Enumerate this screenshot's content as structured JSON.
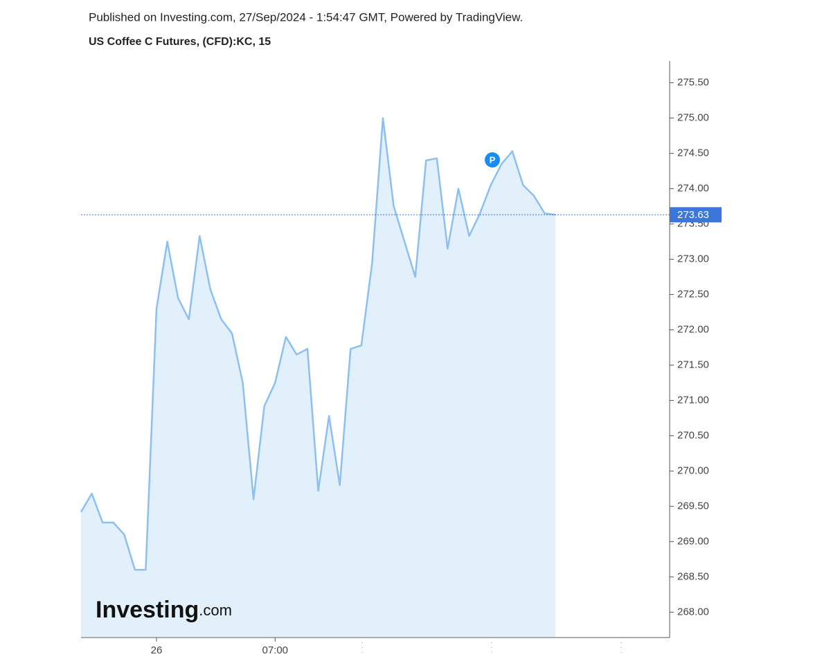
{
  "header": {
    "published": "Published on Investing.com, 27/Sep/2024 - 1:54:47 GMT, Powered by TradingView.",
    "logo_main": "Investing",
    "logo_suffix": ".com",
    "marker": "P"
  },
  "chart_data": {
    "type": "area",
    "title": "US Coffee C Futures, (CFD):KC, 15",
    "color": "#8dbfef",
    "fill": "#e1f0fa",
    "categories": [
      null,
      null,
      null,
      null,
      null,
      null,
      null,
      "26",
      null,
      null,
      null,
      null,
      null,
      null,
      null,
      null,
      null,
      null,
      "07:00",
      null,
      null,
      null,
      null,
      null,
      null,
      null,
      null,
      null,
      null,
      null,
      null,
      null,
      null,
      null,
      null,
      null,
      null,
      null,
      null,
      null,
      null,
      null,
      null,
      null,
      null
    ],
    "values": [
      269.42,
      269.68,
      269.27,
      269.27,
      269.1,
      268.6,
      268.6,
      272.3,
      273.25,
      272.45,
      272.15,
      273.33,
      272.57,
      272.15,
      271.95,
      271.25,
      269.6,
      270.92,
      271.25,
      271.9,
      271.65,
      271.73,
      269.72,
      270.78,
      269.8,
      271.73,
      271.78,
      272.95,
      275.0,
      273.75,
      273.25,
      272.75,
      274.4,
      274.43,
      273.15,
      274.0,
      273.33,
      273.65,
      274.05,
      274.35,
      274.53,
      274.05,
      273.9,
      273.65,
      273.63
    ],
    "ylim": [
      267.65,
      275.81
    ],
    "yticks": [
      {
        "value": 268,
        "label": "268.00"
      },
      {
        "value": 268.5,
        "label": "268.50"
      },
      {
        "value": 269,
        "label": "269.00"
      },
      {
        "value": 269.5,
        "label": "269.50"
      },
      {
        "value": 270,
        "label": "270.00"
      },
      {
        "value": 270.5,
        "label": "270.50"
      },
      {
        "value": 271,
        "label": "271.00"
      },
      {
        "value": 271.5,
        "label": "271.50"
      },
      {
        "value": 272,
        "label": "272.00"
      },
      {
        "value": 272.5,
        "label": "272.50"
      },
      {
        "value": 273,
        "label": "273.00"
      },
      {
        "value": 273.5,
        "label": "273.50"
      },
      {
        "value": 274,
        "label": "274.00"
      },
      {
        "value": 274.5,
        "label": "274.50"
      },
      {
        "value": 275,
        "label": "275.00"
      },
      {
        "value": 275.5,
        "label": "275.50"
      }
    ],
    "last_price_color": "#3a77d8"
  }
}
